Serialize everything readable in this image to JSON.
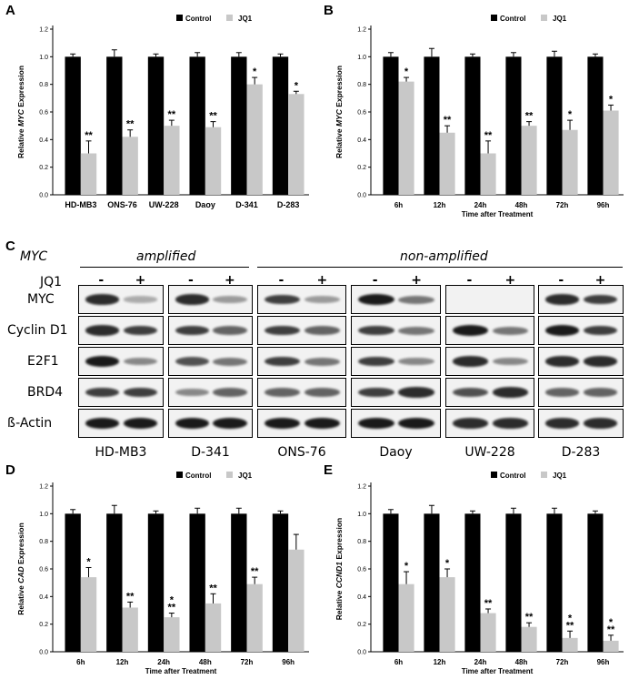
{
  "panels": {
    "A": "A",
    "B": "B",
    "C": "C",
    "D": "D",
    "E": "E"
  },
  "colors": {
    "control": "#000000",
    "jq1": "#c8c8c8",
    "band": "#1a1a1a",
    "blot_bg": "#f2f2f2"
  },
  "legend": {
    "control": "Control",
    "jq1": "JQ1"
  },
  "chart_data": [
    {
      "id": "A",
      "type": "bar",
      "ylabel_pre": "Relative ",
      "ylabel_ital": "MYC",
      "ylabel_post": " Expression",
      "xlabel": "",
      "ylim": [
        0,
        1.2
      ],
      "yticks": [
        "0.0",
        "0.2",
        "0.4",
        "0.6",
        "0.8",
        "1.0",
        "1.2"
      ],
      "categories": [
        "HD-MB3",
        "ONS-76",
        "UW-228",
        "Daoy",
        "D-341",
        "D-283"
      ],
      "series": [
        {
          "name": "Control",
          "values": [
            1.0,
            1.0,
            1.0,
            1.0,
            1.0,
            1.0
          ],
          "err": [
            0.02,
            0.05,
            0.02,
            0.03,
            0.03,
            0.02
          ]
        },
        {
          "name": "JQ1",
          "values": [
            0.3,
            0.42,
            0.5,
            0.49,
            0.8,
            0.73
          ],
          "err": [
            0.09,
            0.05,
            0.04,
            0.04,
            0.05,
            0.02
          ]
        }
      ],
      "sig": [
        "**",
        "**",
        "**",
        "**",
        "*",
        "*"
      ]
    },
    {
      "id": "B",
      "type": "bar",
      "ylabel_pre": "Relative ",
      "ylabel_ital": "MYC",
      "ylabel_post": " Expression",
      "xlabel": "Time after Treatment",
      "ylim": [
        0,
        1.2
      ],
      "yticks": [
        "0.0",
        "0.2",
        "0.4",
        "0.6",
        "0.8",
        "1.0",
        "1.2"
      ],
      "categories": [
        "6h",
        "12h",
        "24h",
        "48h",
        "72h",
        "96h"
      ],
      "series": [
        {
          "name": "Control",
          "values": [
            1.0,
            1.0,
            1.0,
            1.0,
            1.0,
            1.0
          ],
          "err": [
            0.03,
            0.06,
            0.02,
            0.03,
            0.04,
            0.02
          ]
        },
        {
          "name": "JQ1",
          "values": [
            0.82,
            0.45,
            0.3,
            0.5,
            0.47,
            0.61
          ],
          "err": [
            0.03,
            0.05,
            0.09,
            0.03,
            0.07,
            0.04
          ]
        }
      ],
      "sig": [
        "*",
        "**",
        "**",
        "**",
        "*",
        "*"
      ]
    },
    {
      "id": "D",
      "type": "bar",
      "ylabel_pre": "Relative ",
      "ylabel_ital": "CAD",
      "ylabel_post": " Expression",
      "xlabel": "Time after Treatment",
      "ylim": [
        0,
        1.2
      ],
      "yticks": [
        "0.0",
        "0.2",
        "0.4",
        "0.6",
        "0.8",
        "1.0",
        "1.2"
      ],
      "categories": [
        "6h",
        "12h",
        "24h",
        "48h",
        "72h",
        "96h"
      ],
      "series": [
        {
          "name": "Control",
          "values": [
            1.0,
            1.0,
            1.0,
            1.0,
            1.0,
            1.0
          ],
          "err": [
            0.03,
            0.06,
            0.02,
            0.04,
            0.04,
            0.02
          ]
        },
        {
          "name": "JQ1",
          "values": [
            0.54,
            0.32,
            0.25,
            0.35,
            0.49,
            0.74
          ],
          "err": [
            0.07,
            0.04,
            0.03,
            0.07,
            0.05,
            0.11
          ]
        }
      ],
      "sig": [
        "*",
        "**",
        "*\n**",
        "**",
        "**",
        ""
      ]
    },
    {
      "id": "E",
      "type": "bar",
      "ylabel_pre": "Relative ",
      "ylabel_ital": "CCND1",
      "ylabel_post": " Expression",
      "xlabel": "Time after Treatment",
      "ylim": [
        0,
        1.2
      ],
      "yticks": [
        "0.0",
        "0.2",
        "0.4",
        "0.6",
        "0.8",
        "1.0",
        "1.2"
      ],
      "categories": [
        "6h",
        "12h",
        "24h",
        "48h",
        "72h",
        "96h"
      ],
      "series": [
        {
          "name": "Control",
          "values": [
            1.0,
            1.0,
            1.0,
            1.0,
            1.0,
            1.0
          ],
          "err": [
            0.03,
            0.06,
            0.02,
            0.04,
            0.04,
            0.02
          ]
        },
        {
          "name": "JQ1",
          "values": [
            0.49,
            0.54,
            0.28,
            0.18,
            0.1,
            0.08
          ],
          "err": [
            0.09,
            0.06,
            0.03,
            0.03,
            0.05,
            0.04
          ]
        }
      ],
      "sig": [
        "*",
        "*",
        "**",
        "**",
        "*\n**",
        "*\n**"
      ]
    }
  ],
  "blot": {
    "myc_label": "MYC",
    "amplified": "amplified",
    "non_amplified": "non-amplified",
    "jq1_label": "JQ1",
    "minus": "-",
    "plus": "+",
    "rows": [
      "MYC",
      "Cyclin D1",
      "E2F1",
      "BRD4",
      "ß-Actin"
    ],
    "cell_lines": [
      "HD-MB3",
      "D-341",
      "ONS-76",
      "Daoy",
      "UW-228",
      "D-283"
    ],
    "intensities": [
      [
        [
          0.9,
          0.2
        ],
        [
          0.9,
          0.3
        ],
        [
          0.8,
          0.3
        ],
        [
          1.0,
          0.5
        ],
        [
          0.0,
          0.0
        ],
        [
          0.9,
          0.8
        ]
      ],
      [
        [
          0.9,
          0.8
        ],
        [
          0.8,
          0.6
        ],
        [
          0.8,
          0.6
        ],
        [
          0.8,
          0.5
        ],
        [
          1.0,
          0.5
        ],
        [
          1.0,
          0.8
        ]
      ],
      [
        [
          1.0,
          0.4
        ],
        [
          0.7,
          0.5
        ],
        [
          0.8,
          0.5
        ],
        [
          0.8,
          0.4
        ],
        [
          0.9,
          0.4
        ],
        [
          0.9,
          0.9
        ]
      ],
      [
        [
          0.8,
          0.8
        ],
        [
          0.4,
          0.6
        ],
        [
          0.6,
          0.6
        ],
        [
          0.8,
          0.9
        ],
        [
          0.7,
          0.9
        ],
        [
          0.6,
          0.6
        ]
      ],
      [
        [
          1.0,
          1.0
        ],
        [
          1.0,
          1.0
        ],
        [
          1.0,
          1.0
        ],
        [
          1.0,
          1.0
        ],
        [
          0.9,
          0.9
        ],
        [
          0.9,
          0.9
        ]
      ]
    ]
  }
}
